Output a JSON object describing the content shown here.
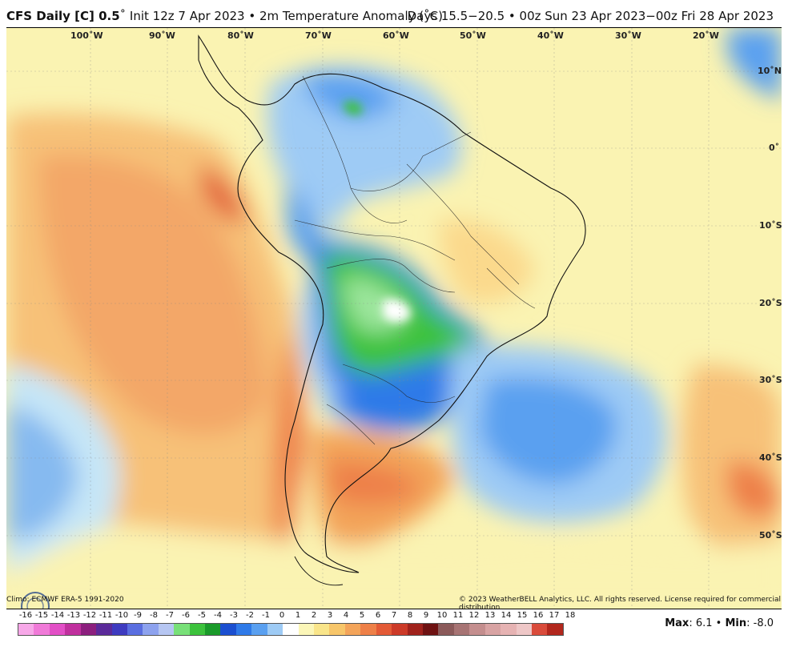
{
  "header": {
    "model": "CFS Daily [C] 0.5",
    "init": "˚ Init 12z 7 Apr 2023 • 2m Temperature Anomaly (˚C)",
    "valid": "Days 15.5−20.5 • 00z Sun 23 Apr 2023−00z Fri 28 Apr 2023"
  },
  "map": {
    "longitudes": [
      "100˚W",
      "90˚W",
      "80˚W",
      "70˚W",
      "60˚W",
      "50˚W",
      "40˚W",
      "30˚W",
      "20˚W"
    ],
    "latitudes": [
      "10˚N",
      "0˚",
      "10˚S",
      "20˚S",
      "30˚S",
      "40˚S",
      "50˚S"
    ],
    "logo_text": "WeatherBELL"
  },
  "footer": {
    "climo": "Climo: ECMWF ERA-5 1991-2020",
    "copyright": "© 2023 WeatherBELL Analytics, LLC. All rights reserved. License required for commercial distribution.",
    "max_label": "Max",
    "max_value": "6.1",
    "min_label": "Min",
    "min_value": "-8.0"
  },
  "colorbar": {
    "ticks": [
      "-16",
      "-15",
      "-14",
      "-13",
      "-12",
      "-11",
      "-10",
      "-9",
      "-8",
      "-7",
      "-6",
      "-5",
      "-4",
      "-3",
      "-2",
      "-1",
      "0",
      "1",
      "2",
      "3",
      "4",
      "5",
      "6",
      "7",
      "8",
      "9",
      "10",
      "11",
      "12",
      "13",
      "14",
      "15",
      "16",
      "17",
      "18"
    ],
    "colors": [
      "#f7a8e8",
      "#f07ad8",
      "#e24fc6",
      "#c0309e",
      "#8c1f7e",
      "#5b2a9a",
      "#3e3bc0",
      "#5a6ee0",
      "#8da2ee",
      "#b6c6f2",
      "#78e078",
      "#3cc23c",
      "#1a9a2a",
      "#1b4fd0",
      "#2f7ae8",
      "#5aa0f0",
      "#9ecbf5",
      "#ffffff",
      "#fbf6b8",
      "#f9e58a",
      "#f7c66a",
      "#f3a45a",
      "#ee8048",
      "#e35a36",
      "#cc3a28",
      "#a0221c",
      "#6e1212",
      "#8b5a5a",
      "#a77474",
      "#c48e8e",
      "#d8a3a3",
      "#e6b3b3",
      "#eec7c7",
      "#d94b3b",
      "#b2271d"
    ]
  }
}
